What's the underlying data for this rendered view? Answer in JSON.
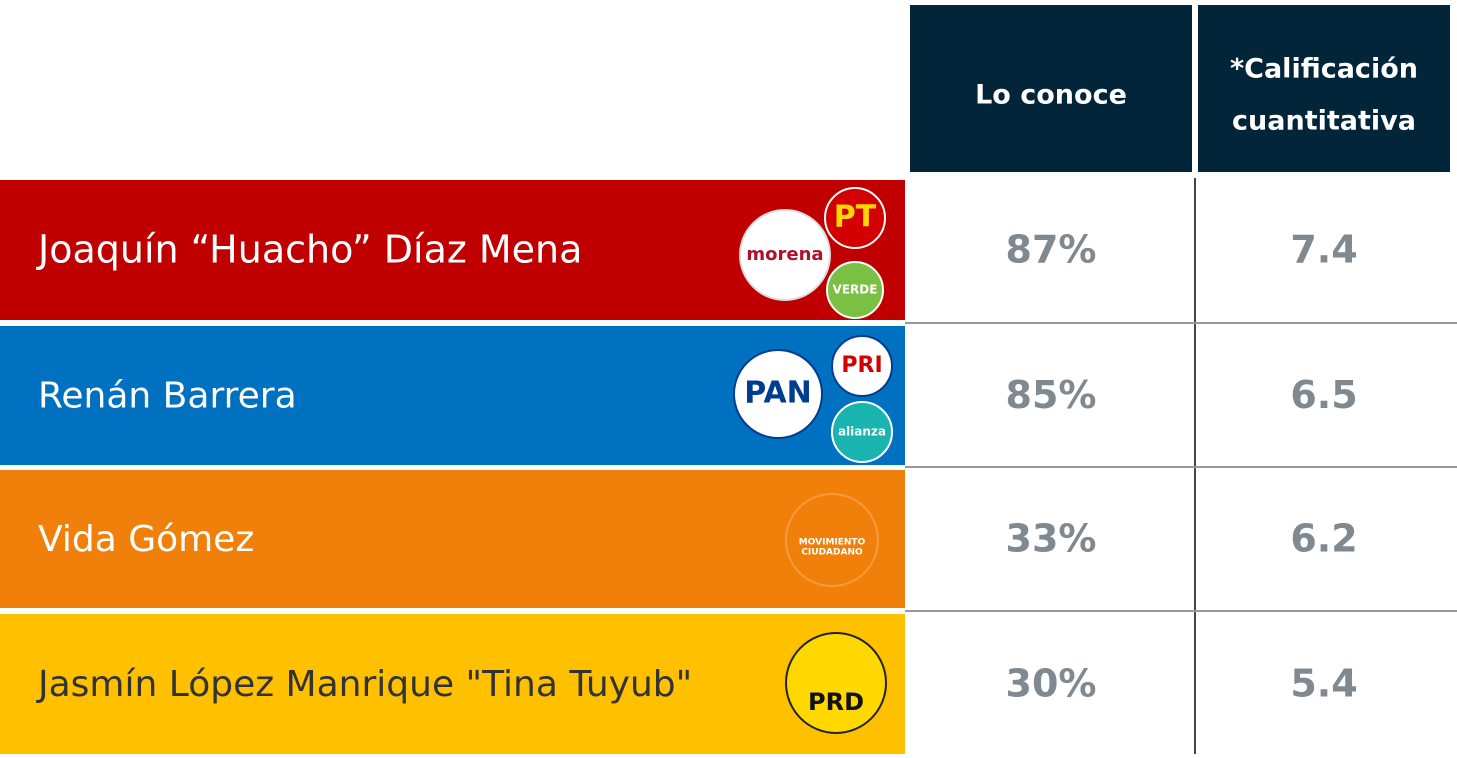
{
  "table": {
    "header": [
      "Lo conoce",
      [
        "*Calificación",
        "cuantitativa"
      ]
    ],
    "rows": [
      {
        "name": "Joaquín “Huacho” Díaz Mena",
        "logos": [
          "morena",
          "PT",
          "VERDE"
        ],
        "cells": [
          "87%",
          "7.4"
        ]
      },
      {
        "name": "Renán Barrera",
        "logos": [
          "PAN",
          "PRI",
          "alianza"
        ],
        "cells": [
          "85%",
          "6.5"
        ]
      },
      {
        "name": "Vida Gómez",
        "logos": [
          "MOVIMIENTO",
          "CIUDADANO"
        ],
        "cells": [
          "33%",
          "6.2"
        ]
      },
      {
        "name": "Jasmín López Manrique \"Tina Tuyub\"",
        "logos": [
          "PRD"
        ],
        "cells": [
          "30%",
          "5.4"
        ]
      }
    ]
  }
}
